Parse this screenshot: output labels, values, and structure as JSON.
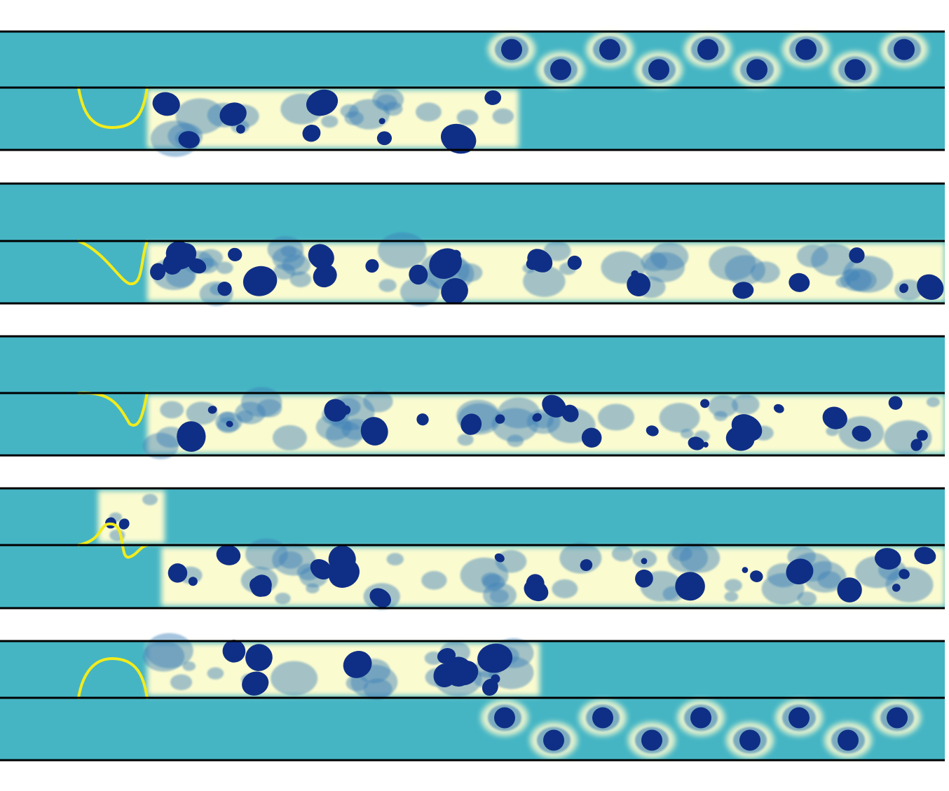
{
  "colors": {
    "background_fluid": "#45b5c4",
    "wake_light": "#fbfbd0",
    "vortex_core": "#0f2f86",
    "vortex_mid": "#3b7fb8",
    "flexible_plate": "#f2ec1c",
    "wall": "#000000"
  }
}
